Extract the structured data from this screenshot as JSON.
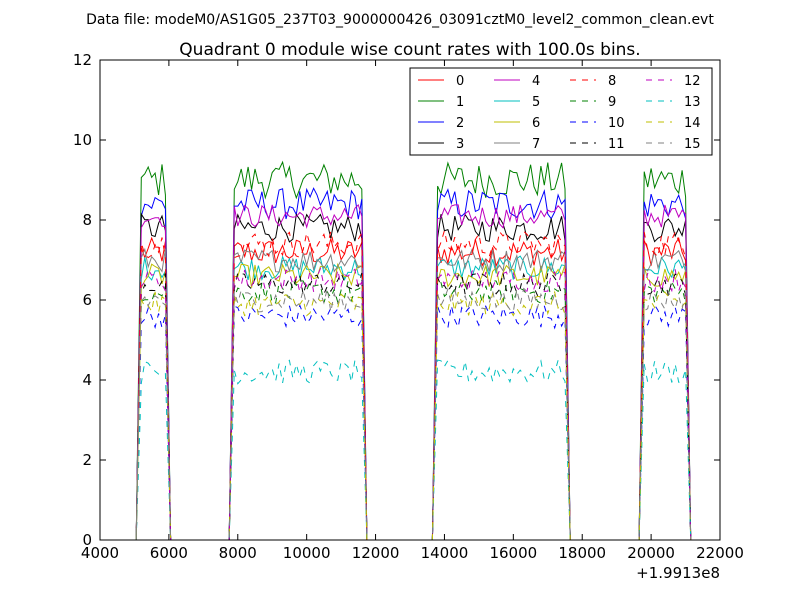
{
  "header": {
    "data_file_label": "Data file: modeM0/AS1G05_237T03_9000000426_03091cztM0_level2_common_clean.evt"
  },
  "chart_data": {
    "type": "line",
    "title": "Quadrant 0 module wise count rates with 100.0s bins.",
    "xlabel": "",
    "ylabel": "",
    "x_offset_label": "+1.9913e8",
    "xlim": [
      4000,
      22000
    ],
    "ylim": [
      0,
      12
    ],
    "x_ticks": [
      "4000",
      "6000",
      "8000",
      "10000",
      "12000",
      "14000",
      "16000",
      "18000",
      "20000",
      "22000"
    ],
    "y_ticks": [
      "0",
      "2",
      "4",
      "6",
      "8",
      "10",
      "12"
    ],
    "x_tick_values": [
      4000,
      6000,
      8000,
      10000,
      12000,
      14000,
      16000,
      18000,
      20000,
      22000
    ],
    "y_tick_values": [
      0,
      2,
      4,
      6,
      8,
      10,
      12
    ],
    "grid": false,
    "legend_position": "top-right",
    "segments": [
      {
        "start": 5200,
        "end": 5900
      },
      {
        "start": 7900,
        "end": 11600
      },
      {
        "start": 13800,
        "end": 17500
      },
      {
        "start": 19800,
        "end": 21000
      }
    ],
    "gap_x": [
      6000,
      6500,
      7000,
      7500,
      11700,
      12500,
      13000,
      13500,
      17600,
      18200,
      18800,
      19400
    ],
    "series": [
      {
        "name": "0",
        "color": "#ff0000",
        "dash": "solid",
        "level": 7.2,
        "jitter": 0.35
      },
      {
        "name": "1",
        "color": "#008000",
        "dash": "solid",
        "level": 9.0,
        "jitter": 0.45
      },
      {
        "name": "2",
        "color": "#0000ff",
        "dash": "solid",
        "level": 8.4,
        "jitter": 0.4
      },
      {
        "name": "3",
        "color": "#000000",
        "dash": "solid",
        "level": 7.8,
        "jitter": 0.35
      },
      {
        "name": "4",
        "color": "#bf00bf",
        "dash": "solid",
        "level": 8.1,
        "jitter": 0.3
      },
      {
        "name": "5",
        "color": "#00bfbf",
        "dash": "solid",
        "level": 6.8,
        "jitter": 0.3
      },
      {
        "name": "6",
        "color": "#bfbf00",
        "dash": "solid",
        "level": 6.6,
        "jitter": 0.3
      },
      {
        "name": "7",
        "color": "#808080",
        "dash": "solid",
        "level": 7.0,
        "jitter": 0.3
      },
      {
        "name": "8",
        "color": "#ff0000",
        "dash": "dashed",
        "level": 7.4,
        "jitter": 0.35
      },
      {
        "name": "9",
        "color": "#008000",
        "dash": "dashed",
        "level": 6.2,
        "jitter": 0.3
      },
      {
        "name": "10",
        "color": "#0000ff",
        "dash": "dashed",
        "level": 5.6,
        "jitter": 0.3
      },
      {
        "name": "11",
        "color": "#000000",
        "dash": "dashed",
        "level": 6.4,
        "jitter": 0.3
      },
      {
        "name": "12",
        "color": "#bf00bf",
        "dash": "dashed",
        "level": 6.5,
        "jitter": 0.3
      },
      {
        "name": "13",
        "color": "#00bfbf",
        "dash": "dashed",
        "level": 4.2,
        "jitter": 0.3
      },
      {
        "name": "14",
        "color": "#bfbf00",
        "dash": "dashed",
        "level": 5.9,
        "jitter": 0.3
      },
      {
        "name": "15",
        "color": "#808080",
        "dash": "dashed",
        "level": 6.0,
        "jitter": 0.3
      }
    ]
  }
}
